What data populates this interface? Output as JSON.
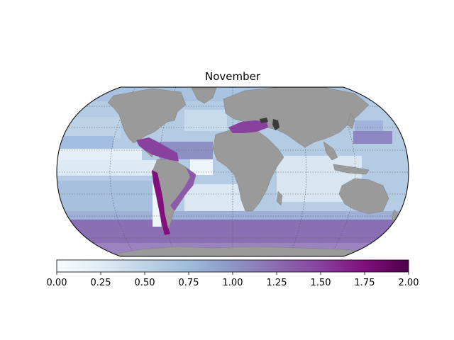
{
  "map": {
    "title": "November",
    "projection": "robinson",
    "graticule": true,
    "ocean_base_color": "#b3cbe3",
    "land_color": "#9a9a9a",
    "inland_sea_color": "#3a3a3a"
  },
  "colorbar": {
    "colormap": "BuPu",
    "range": [
      0,
      2
    ],
    "ticks": [
      {
        "value": 0.0,
        "label": "0.00"
      },
      {
        "value": 0.25,
        "label": "0.25"
      },
      {
        "value": 0.5,
        "label": "0.50"
      },
      {
        "value": 0.75,
        "label": "0.75"
      },
      {
        "value": 1.0,
        "label": "1.00"
      },
      {
        "value": 1.25,
        "label": "1.25"
      },
      {
        "value": 1.5,
        "label": "1.50"
      },
      {
        "value": 1.75,
        "label": "1.75"
      },
      {
        "value": 2.0,
        "label": "2.00"
      }
    ],
    "stops": [
      "#f7fcfd",
      "#e0ecf4",
      "#bfd3e6",
      "#9ebcda",
      "#8c96c6",
      "#8c6bb1",
      "#88419d",
      "#810f7c",
      "#4d004b"
    ]
  }
}
